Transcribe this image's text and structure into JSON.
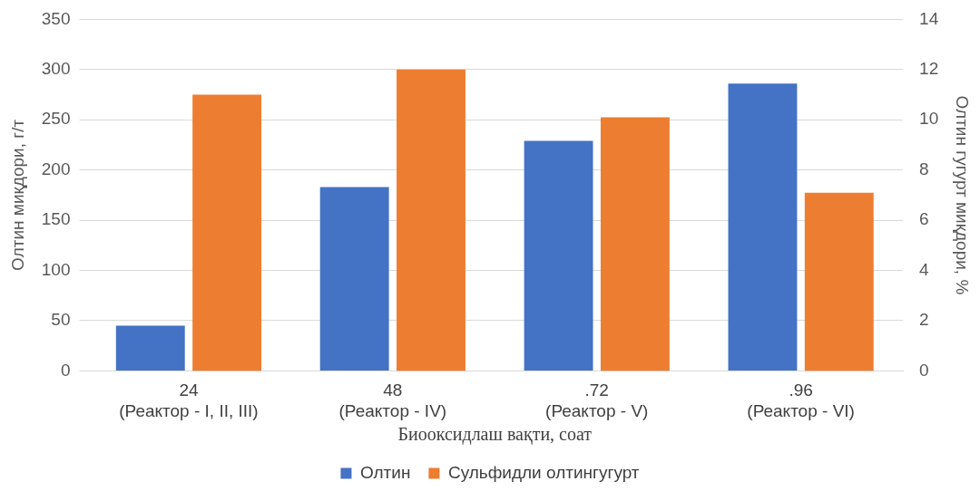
{
  "chart_data": {
    "type": "bar",
    "categories": [
      "24\n(Реактор - I, II, III)",
      "48\n(Реактор - IV)",
      ".72\n(Реактор - V)",
      ".96\n(Реактор - VI)"
    ],
    "series": [
      {
        "name": "Олтин",
        "color": "#4472c4",
        "values": [
          45,
          183,
          229,
          286
        ]
      },
      {
        "name": "Сульфидли олтингугурт",
        "color": "#ed7d31",
        "values": [
          11,
          12,
          10.1,
          7.1
        ],
        "axis": "y2"
      }
    ],
    "xlabel": "Биооксидлаш вақти, соат",
    "ylabel": "Олтин миқдори, г/т",
    "y2label": "Олтин гугурт миқдори, %",
    "ylim": [
      0,
      350
    ],
    "yticks": [
      0,
      50,
      100,
      150,
      200,
      250,
      300,
      350
    ],
    "y2lim": [
      0,
      14
    ],
    "y2ticks": [
      0,
      2,
      4,
      6,
      8,
      10,
      12,
      14
    ],
    "grid": "y",
    "legend": "bottom"
  }
}
